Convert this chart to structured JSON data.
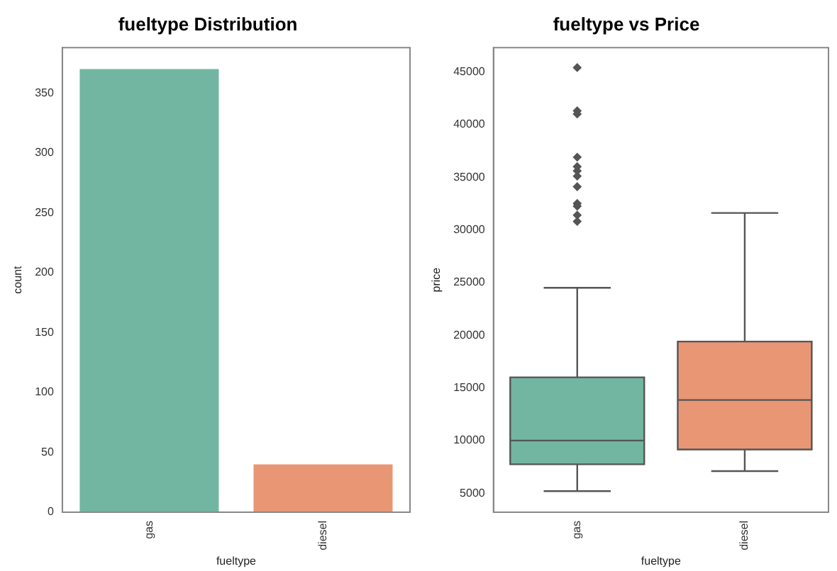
{
  "chart_data": [
    {
      "type": "bar",
      "title": "fueltype Distribution",
      "xlabel": "fueltype",
      "ylabel": "count",
      "categories": [
        "gas",
        "diesel"
      ],
      "values": [
        370,
        40
      ],
      "colors": [
        "#72b6a1",
        "#e99675"
      ],
      "ylim": [
        0,
        388
      ],
      "yticks": [
        0,
        50,
        100,
        150,
        200,
        250,
        300,
        350
      ]
    },
    {
      "type": "box",
      "title": "fueltype vs Price",
      "xlabel": "fueltype",
      "ylabel": "price",
      "categories": [
        "gas",
        "diesel"
      ],
      "colors": [
        "#72b6a1",
        "#e99675"
      ],
      "marker": "diamond",
      "boxes": [
        {
          "low": 5200,
          "q1": 7750,
          "median": 10000,
          "q3": 16000,
          "high": 24500,
          "outliers": [
            30800,
            31400,
            32250,
            32500,
            34100,
            35100,
            35600,
            36000,
            36900,
            41000,
            41300,
            45400
          ]
        },
        {
          "low": 7100,
          "q1": 9150,
          "median": 13850,
          "q3": 19400,
          "high": 31600
        }
      ],
      "ylim": [
        3200,
        47300
      ],
      "yticks": [
        5000,
        10000,
        15000,
        20000,
        25000,
        30000,
        35000,
        40000,
        45000
      ]
    }
  ]
}
